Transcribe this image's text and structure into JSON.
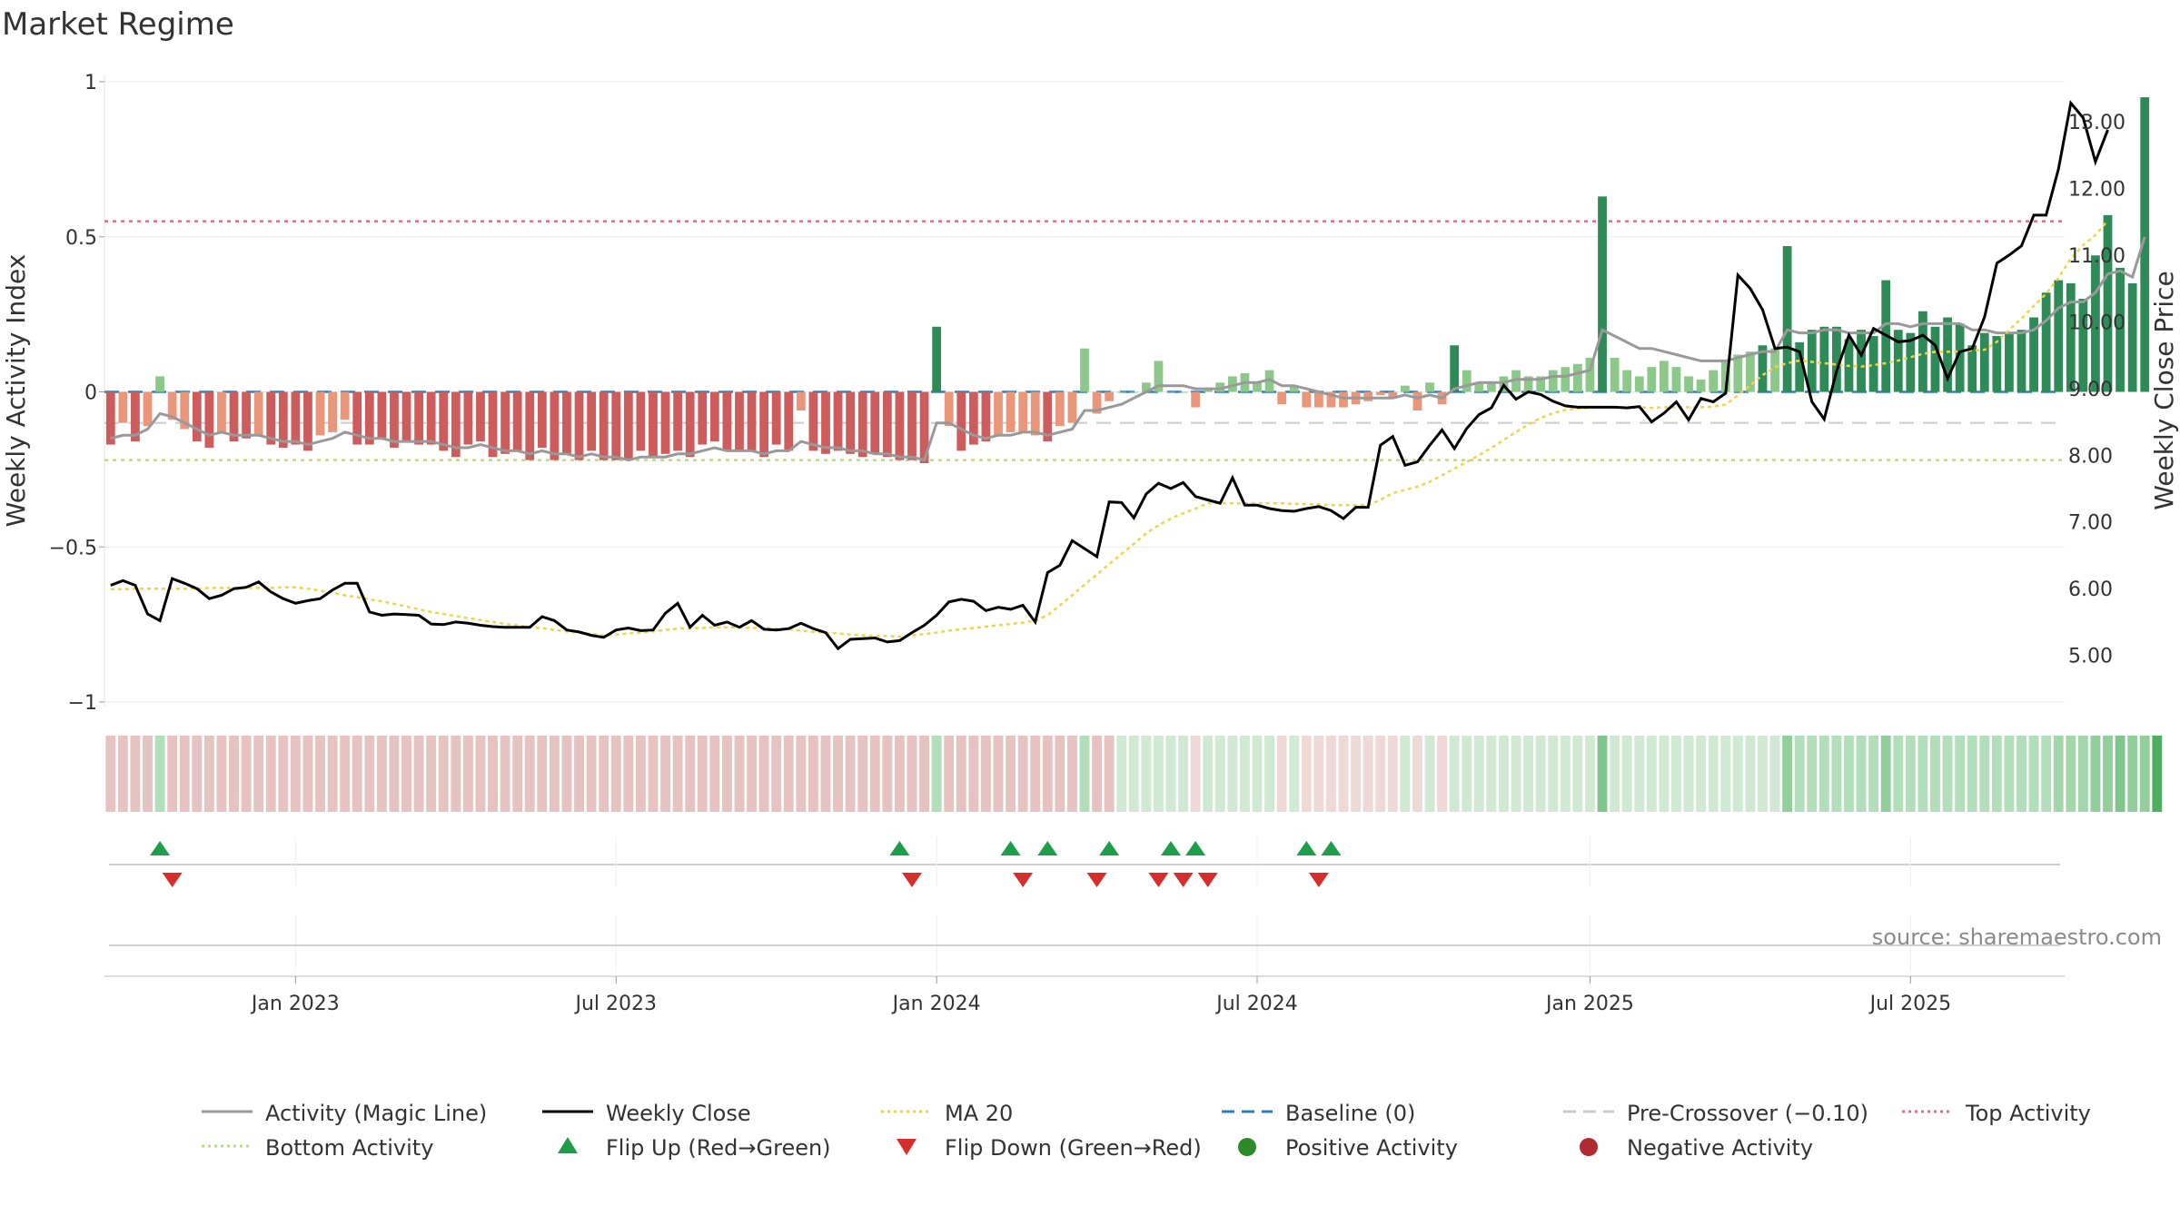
{
  "chart_data": {
    "type": "bar",
    "title": "Market Regime",
    "ylabel_left": "Weekly Activity Index",
    "ylabel_right": "Weekly Close Price",
    "source": "source: sharemaestro.com",
    "ylim_left": [
      -1.0,
      1.0
    ],
    "ylim_right": [
      4.3,
      13.6
    ],
    "left_ticks": [
      {
        "value": 1,
        "label": "1"
      },
      {
        "value": 0.5,
        "label": "0.5"
      },
      {
        "value": 0,
        "label": "0"
      },
      {
        "value": -0.5,
        "label": "−0.5"
      },
      {
        "value": -1,
        "label": "−1"
      }
    ],
    "right_ticks": [
      {
        "value": 13,
        "label": "13.00"
      },
      {
        "value": 12,
        "label": "12.00"
      },
      {
        "value": 11,
        "label": "11.00"
      },
      {
        "value": 10,
        "label": "10.00"
      },
      {
        "value": 9,
        "label": "9.00"
      },
      {
        "value": 8,
        "label": "8.00"
      },
      {
        "value": 7,
        "label": "7.00"
      },
      {
        "value": 6,
        "label": "6.00"
      },
      {
        "value": 5,
        "label": "5.00"
      }
    ],
    "x_ticks": [
      {
        "week": 15,
        "label": "Jan 2023"
      },
      {
        "week": 41,
        "label": "Jul 2023"
      },
      {
        "week": 67,
        "label": "Jan 2024"
      },
      {
        "week": 93,
        "label": "Jul 2024"
      },
      {
        "week": 120,
        "label": "Jan 2025"
      },
      {
        "week": 146,
        "label": "Jul 2025"
      }
    ],
    "weeks": 159,
    "levels": {
      "top_activity": 0.55,
      "bottom_activity": -0.22,
      "baseline": 0,
      "pre_crossover": -0.1
    },
    "activity": [
      -0.17,
      -0.1,
      -0.16,
      -0.11,
      0.05,
      -0.09,
      -0.12,
      -0.16,
      -0.18,
      -0.13,
      -0.16,
      -0.15,
      -0.14,
      -0.17,
      -0.18,
      -0.17,
      -0.19,
      -0.14,
      -0.13,
      -0.09,
      -0.17,
      -0.17,
      -0.15,
      -0.18,
      -0.16,
      -0.17,
      -0.17,
      -0.19,
      -0.21,
      -0.17,
      -0.16,
      -0.21,
      -0.2,
      -0.19,
      -0.22,
      -0.18,
      -0.22,
      -0.2,
      -0.22,
      -0.19,
      -0.22,
      -0.22,
      -0.22,
      -0.19,
      -0.21,
      -0.2,
      -0.19,
      -0.21,
      -0.17,
      -0.16,
      -0.19,
      -0.19,
      -0.19,
      -0.21,
      -0.17,
      -0.19,
      -0.06,
      -0.19,
      -0.2,
      -0.19,
      -0.2,
      -0.21,
      -0.2,
      -0.21,
      -0.22,
      -0.22,
      -0.23,
      0.21,
      -0.11,
      -0.19,
      -0.17,
      -0.16,
      -0.14,
      -0.13,
      -0.13,
      -0.14,
      -0.16,
      -0.11,
      -0.1,
      0.14,
      -0.07,
      -0.03,
      0.0,
      0.0,
      0.03,
      0.1,
      0.0,
      0.0,
      -0.05,
      0.01,
      0.03,
      0.05,
      0.06,
      0.03,
      0.07,
      -0.04,
      0.02,
      -0.05,
      -0.05,
      -0.05,
      -0.05,
      -0.04,
      -0.03,
      -0.01,
      -0.02,
      0.02,
      -0.06,
      0.03,
      -0.04,
      0.15,
      0.07,
      0.03,
      0.03,
      0.05,
      0.07,
      0.05,
      0.05,
      0.07,
      0.08,
      0.09,
      0.11,
      0.63,
      0.11,
      0.07,
      0.05,
      0.08,
      0.1,
      0.08,
      0.05,
      0.04,
      0.07,
      0.1,
      0.12,
      0.13,
      0.15,
      0.14,
      0.47,
      0.16,
      0.2,
      0.21,
      0.21,
      0.17,
      0.2,
      0.18,
      0.36,
      0.2,
      0.19,
      0.26,
      0.21,
      0.24,
      0.22,
      0.15,
      0.19,
      0.18,
      0.19,
      0.2,
      0.24,
      0.32,
      0.36,
      0.35,
      0.3,
      0.44,
      0.57,
      0.4,
      0.35,
      0.95
    ],
    "magic_line": [
      -0.15,
      -0.14,
      -0.14,
      -0.12,
      -0.07,
      -0.08,
      -0.1,
      -0.12,
      -0.14,
      -0.13,
      -0.14,
      -0.14,
      -0.14,
      -0.15,
      -0.16,
      -0.16,
      -0.17,
      -0.16,
      -0.15,
      -0.13,
      -0.14,
      -0.15,
      -0.15,
      -0.16,
      -0.16,
      -0.16,
      -0.16,
      -0.17,
      -0.18,
      -0.18,
      -0.17,
      -0.18,
      -0.19,
      -0.19,
      -0.2,
      -0.19,
      -0.2,
      -0.2,
      -0.21,
      -0.2,
      -0.21,
      -0.21,
      -0.22,
      -0.21,
      -0.21,
      -0.21,
      -0.2,
      -0.2,
      -0.19,
      -0.18,
      -0.19,
      -0.19,
      -0.19,
      -0.2,
      -0.19,
      -0.19,
      -0.16,
      -0.17,
      -0.18,
      -0.18,
      -0.19,
      -0.19,
      -0.2,
      -0.2,
      -0.21,
      -0.21,
      -0.22,
      -0.1,
      -0.1,
      -0.12,
      -0.14,
      -0.15,
      -0.14,
      -0.14,
      -0.13,
      -0.13,
      -0.14,
      -0.13,
      -0.12,
      -0.06,
      -0.06,
      -0.05,
      -0.04,
      -0.02,
      0.0,
      0.02,
      0.02,
      0.02,
      0.01,
      0.01,
      0.01,
      0.02,
      0.03,
      0.03,
      0.04,
      0.02,
      0.02,
      0.01,
      0.0,
      -0.01,
      -0.02,
      -0.02,
      -0.02,
      -0.02,
      -0.02,
      -0.01,
      -0.02,
      -0.01,
      -0.02,
      0.01,
      0.02,
      0.03,
      0.03,
      0.03,
      0.04,
      0.04,
      0.04,
      0.05,
      0.05,
      0.06,
      0.07,
      0.2,
      0.18,
      0.16,
      0.14,
      0.14,
      0.13,
      0.12,
      0.11,
      0.1,
      0.1,
      0.1,
      0.11,
      0.12,
      0.13,
      0.13,
      0.2,
      0.19,
      0.19,
      0.2,
      0.2,
      0.19,
      0.19,
      0.19,
      0.22,
      0.22,
      0.21,
      0.22,
      0.22,
      0.22,
      0.22,
      0.2,
      0.2,
      0.19,
      0.19,
      0.19,
      0.2,
      0.23,
      0.27,
      0.29,
      0.29,
      0.32,
      0.38,
      0.39,
      0.37,
      0.5
    ],
    "close": [
      6.05,
      6.12,
      6.05,
      5.62,
      5.52,
      6.15,
      6.08,
      6.0,
      5.85,
      5.9,
      6.0,
      6.02,
      6.1,
      5.95,
      5.85,
      5.78,
      5.82,
      5.85,
      5.98,
      6.08,
      6.08,
      5.65,
      5.6,
      5.62,
      5.61,
      5.6,
      5.47,
      5.46,
      5.5,
      5.48,
      5.45,
      5.43,
      5.42,
      5.42,
      5.42,
      5.58,
      5.52,
      5.38,
      5.35,
      5.3,
      5.27,
      5.38,
      5.41,
      5.37,
      5.38,
      5.63,
      5.78,
      5.42,
      5.6,
      5.45,
      5.5,
      5.42,
      5.52,
      5.39,
      5.38,
      5.4,
      5.48,
      5.4,
      5.34,
      5.1,
      5.24,
      5.25,
      5.26,
      5.2,
      5.22,
      5.34,
      5.45,
      5.6,
      5.8,
      5.84,
      5.81,
      5.67,
      5.72,
      5.69,
      5.75,
      5.5,
      6.24,
      6.35,
      6.72,
      6.6,
      6.48,
      7.3,
      7.29,
      7.06,
      7.42,
      7.58,
      7.5,
      7.59,
      7.38,
      7.33,
      7.28,
      7.66,
      7.25,
      7.25,
      7.2,
      7.17,
      7.16,
      7.2,
      7.23,
      7.17,
      7.05,
      7.22,
      7.22,
      8.15,
      8.28,
      7.85,
      7.9,
      8.15,
      8.38,
      8.1,
      8.4,
      8.61,
      8.71,
      9.05,
      8.84,
      8.95,
      8.91,
      8.81,
      8.74,
      8.72,
      8.72,
      8.72,
      8.72,
      8.71,
      8.73,
      8.5,
      8.63,
      8.8,
      8.53,
      8.85,
      8.8,
      8.93,
      10.7,
      10.5,
      10.18,
      9.6,
      9.62,
      9.55,
      8.8,
      8.54,
      9.26,
      9.8,
      9.5,
      9.9,
      9.8,
      9.7,
      9.72,
      9.8,
      9.65,
      9.15,
      9.55,
      9.6,
      10.07,
      10.88,
      11.0,
      11.14,
      11.6,
      11.6,
      12.29,
      13.28,
      13.06,
      12.4,
      12.88
    ],
    "ma20": [
      5.99,
      5.99,
      6.0,
      6.0,
      6.0,
      6.0,
      6.0,
      6.0,
      6.01,
      6.01,
      6.01,
      6.01,
      6.01,
      6.01,
      6.02,
      6.02,
      6.0,
      5.97,
      5.94,
      5.9,
      5.87,
      5.84,
      5.81,
      5.77,
      5.73,
      5.69,
      5.65,
      5.62,
      5.59,
      5.56,
      5.53,
      5.5,
      5.47,
      5.45,
      5.42,
      5.41,
      5.38,
      5.36,
      5.34,
      5.32,
      5.3,
      5.31,
      5.33,
      5.34,
      5.36,
      5.38,
      5.4,
      5.41,
      5.41,
      5.42,
      5.42,
      5.42,
      5.41,
      5.41,
      5.4,
      5.39,
      5.37,
      5.35,
      5.34,
      5.33,
      5.31,
      5.3,
      5.29,
      5.29,
      5.28,
      5.3,
      5.32,
      5.34,
      5.37,
      5.39,
      5.41,
      5.43,
      5.45,
      5.47,
      5.49,
      5.52,
      5.6,
      5.75,
      5.9,
      6.06,
      6.21,
      6.37,
      6.52,
      6.67,
      6.83,
      6.95,
      7.05,
      7.13,
      7.2,
      7.28,
      7.28,
      7.28,
      7.28,
      7.28,
      7.28,
      7.28,
      7.27,
      7.27,
      7.26,
      7.25,
      7.25,
      7.25,
      7.25,
      7.33,
      7.43,
      7.48,
      7.53,
      7.6,
      7.7,
      7.8,
      7.9,
      8.0,
      8.11,
      8.23,
      8.35,
      8.46,
      8.56,
      8.63,
      8.68,
      8.7,
      8.71,
      8.72,
      8.72,
      8.72,
      8.72,
      8.71,
      8.72,
      8.72,
      8.72,
      8.72,
      8.73,
      8.76,
      8.9,
      9.05,
      9.2,
      9.32,
      9.38,
      9.42,
      9.4,
      9.38,
      9.36,
      9.34,
      9.33,
      9.35,
      9.38,
      9.42,
      9.47,
      9.52,
      9.55,
      9.55,
      9.56,
      9.57,
      9.58,
      9.7,
      9.88,
      10.05,
      10.24,
      10.42,
      10.66,
      10.95,
      11.15,
      11.3,
      11.52
    ],
    "flip_up_weeks": [
      4,
      64,
      73,
      76,
      81,
      86,
      88,
      97,
      99
    ],
    "flip_down_weeks": [
      5,
      65,
      74,
      80,
      85,
      87,
      89,
      98
    ],
    "strip_colors": [
      "#e6c3c1",
      "#e6c3c1",
      "#e6c3c1",
      "#e6c3c1",
      "#b3deba",
      "#e6c3c1",
      "#e6c3c1",
      "#e6c3c1",
      "#e6c3c1",
      "#e6c3c1",
      "#e6c3c1",
      "#e6c3c1",
      "#e6c3c1",
      "#e6c3c1",
      "#e6c3c1",
      "#e6c3c1",
      "#e6c3c1",
      "#e6c3c1",
      "#e6c3c1",
      "#e6c3c1",
      "#e6c3c1",
      "#e6c3c1",
      "#e6c3c1",
      "#e6c3c1",
      "#e6c3c1",
      "#e6c3c1",
      "#e6c3c1",
      "#e6c3c1",
      "#e6c3c1",
      "#e6c3c1",
      "#e6c3c1",
      "#e6c3c1",
      "#e6c3c1",
      "#e6c3c1",
      "#e6c3c1",
      "#e6c3c1",
      "#e6c3c1",
      "#e6c3c1",
      "#e6c3c1",
      "#e6c3c1",
      "#e6c3c1",
      "#e6c3c1",
      "#e6c3c1",
      "#e6c3c1",
      "#e6c3c1",
      "#e6c3c1",
      "#e6c3c1",
      "#e6c3c1",
      "#e6c3c1",
      "#e6c3c1",
      "#e6c3c1",
      "#e6c3c1",
      "#e6c3c1",
      "#e6c3c1",
      "#e6c3c1",
      "#e6c3c1",
      "#e6c3c1",
      "#e6c3c1",
      "#e6c3c1",
      "#e6c3c1",
      "#e6c3c1",
      "#e6c3c1",
      "#e6c3c1",
      "#e6c3c1",
      "#e6c3c1",
      "#e6c3c1",
      "#e6c3c1",
      "#b3deba",
      "#e6c3c1",
      "#e6c3c1",
      "#e6c3c1",
      "#e6c3c1",
      "#e6c3c1",
      "#e6c3c1",
      "#e6c3c1",
      "#e6c3c1",
      "#e6c3c1",
      "#e6c3c1",
      "#e6c3c1",
      "#b3deba",
      "#e6c3c1",
      "#e6c3c1",
      "#cfe9d3",
      "#cfe9d3",
      "#cfe9d3",
      "#cfe9d3",
      "#cfe9d3",
      "#cfe9d3",
      "#efd9d7",
      "#cfe9d3",
      "#cfe9d3",
      "#cfe9d3",
      "#cfe9d3",
      "#cfe9d3",
      "#cfe9d3",
      "#efd9d7",
      "#cfe9d3",
      "#efd9d7",
      "#efd9d7",
      "#efd9d7",
      "#efd9d7",
      "#efd9d7",
      "#efd9d7",
      "#efd9d7",
      "#efd9d7",
      "#cfe9d3",
      "#efd9d7",
      "#cfe9d3",
      "#efd9d7",
      "#cfe9d3",
      "#cfe9d3",
      "#cfe9d3",
      "#cfe9d3",
      "#cfe9d3",
      "#cfe9d3",
      "#cfe9d3",
      "#cfe9d3",
      "#cfe9d3",
      "#cfe9d3",
      "#cfe9d3",
      "#cfe9d3",
      "#7fc58c",
      "#cfe9d3",
      "#cfe9d3",
      "#cfe9d3",
      "#cfe9d3",
      "#cfe9d3",
      "#cfe9d3",
      "#cfe9d3",
      "#cfe9d3",
      "#cfe9d3",
      "#cfe9d3",
      "#cfe9d3",
      "#cfe9d3",
      "#cfe9d3",
      "#cfe9d3",
      "#92cf9c",
      "#b3deba",
      "#b3deba",
      "#b3deba",
      "#b3deba",
      "#b3deba",
      "#b3deba",
      "#b3deba",
      "#92cf9c",
      "#b3deba",
      "#b3deba",
      "#b3deba",
      "#b3deba",
      "#b3deba",
      "#b3deba",
      "#b3deba",
      "#b3deba",
      "#b3deba",
      "#b3deba",
      "#b3deba",
      "#b3deba",
      "#b3deba",
      "#a3d7ab",
      "#a3d7ab",
      "#a3d7ab",
      "#92cf9c",
      "#92cf9c",
      "#7fc58c",
      "#92cf9c",
      "#92cf9c",
      "#4caf5e"
    ],
    "legend": [
      {
        "label": "Activity (Magic Line)",
        "kind": "line",
        "color": "#999999",
        "dash": ""
      },
      {
        "label": "Weekly Close",
        "kind": "line",
        "color": "#000000",
        "dash": ""
      },
      {
        "label": "MA 20",
        "kind": "line",
        "color": "#f0d34a",
        "dash": "3,4"
      },
      {
        "label": "Baseline (0)",
        "kind": "line",
        "color": "#2f7fb5",
        "dash": "14,8"
      },
      {
        "label": "Pre-Crossover (−0.10)",
        "kind": "line",
        "color": "#cccccc",
        "dash": "14,8"
      },
      {
        "label": "Top Activity",
        "kind": "line",
        "color": "#e36c86",
        "dash": "3,4"
      },
      {
        "label": "Bottom Activity",
        "kind": "line",
        "color": "#b9dd7c",
        "dash": "3,4"
      },
      {
        "label": "Flip Up (Red→Green)",
        "kind": "tri-up",
        "color": "#1e9e4a",
        "dash": ""
      },
      {
        "label": "Flip Down (Green→Red)",
        "kind": "tri-down",
        "color": "#d62d2d",
        "dash": ""
      },
      {
        "label": "Positive Activity",
        "kind": "dot",
        "color": "#2c8a28",
        "dash": ""
      },
      {
        "label": "Negative Activity",
        "kind": "dot",
        "color": "#b22930",
        "dash": ""
      }
    ],
    "colors": {
      "positive_dark": "#2e8b57",
      "positive_light": "#8cc88a",
      "negative_dark": "#cd5c5c",
      "negative_light": "#e9967a",
      "close": "#000000",
      "magic": "#999999",
      "ma20": "#f0d34a"
    }
  }
}
